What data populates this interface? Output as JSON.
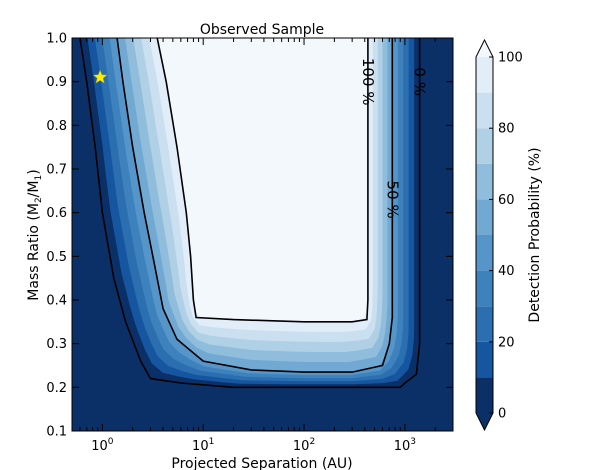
{
  "chart_data": {
    "type": "heatmap",
    "title": "Observed Sample",
    "xlabel": "Projected Separation (AU)",
    "ylabel_main": "Mass Ratio (M",
    "ylabel_sub1": "2",
    "ylabel_mid": "/M",
    "ylabel_sub2": "1",
    "ylabel_end": ")",
    "x_scale": "log",
    "xlim": [
      0.5,
      3000
    ],
    "ylim": [
      0.1,
      1.0
    ],
    "x_ticks": [
      {
        "value": 1,
        "base": "10",
        "exp": "0"
      },
      {
        "value": 10,
        "base": "10",
        "exp": "1"
      },
      {
        "value": 100,
        "base": "10",
        "exp": "2"
      },
      {
        "value": 1000,
        "base": "10",
        "exp": "3"
      }
    ],
    "y_ticks": [
      {
        "value": 0.1,
        "label": "0.1"
      },
      {
        "value": 0.2,
        "label": "0.2"
      },
      {
        "value": 0.3,
        "label": "0.3"
      },
      {
        "value": 0.4,
        "label": "0.4"
      },
      {
        "value": 0.5,
        "label": "0.5"
      },
      {
        "value": 0.6,
        "label": "0.6"
      },
      {
        "value": 0.7,
        "label": "0.7"
      },
      {
        "value": 0.8,
        "label": "0.8"
      },
      {
        "value": 0.9,
        "label": "0.9"
      },
      {
        "value": 1.0,
        "label": "1.0"
      }
    ],
    "colorbar": {
      "label": "Detection Probability (%)",
      "range": [
        0,
        100
      ],
      "ticks": [
        {
          "value": 0,
          "label": "0"
        },
        {
          "value": 20,
          "label": "20"
        },
        {
          "value": 40,
          "label": "40"
        },
        {
          "value": 60,
          "label": "60"
        },
        {
          "value": 80,
          "label": "80"
        },
        {
          "value": 100,
          "label": "100"
        }
      ],
      "levels": [
        {
          "value": 0,
          "color": "#0b3068"
        },
        {
          "value": 10,
          "color": "#1656a1"
        },
        {
          "value": 20,
          "color": "#2b6fb1"
        },
        {
          "value": 30,
          "color": "#3d82bd"
        },
        {
          "value": 40,
          "color": "#5695c9"
        },
        {
          "value": 50,
          "color": "#72a9d3"
        },
        {
          "value": 60,
          "color": "#90bddc"
        },
        {
          "value": 70,
          "color": "#b0d0e6"
        },
        {
          "value": 80,
          "color": "#cadff0"
        },
        {
          "value": 90,
          "color": "#e1edf8"
        },
        {
          "value": 100,
          "color": "#f3f8fd"
        }
      ]
    },
    "contours": [
      {
        "level": 0,
        "label": "0 %",
        "points": [
          [
            0.6,
            1.0
          ],
          [
            0.7,
            0.9
          ],
          [
            0.85,
            0.75
          ],
          [
            1.0,
            0.6
          ],
          [
            1.3,
            0.45
          ],
          [
            1.7,
            0.35
          ],
          [
            2.4,
            0.26
          ],
          [
            3.0,
            0.22
          ],
          [
            6.0,
            0.21
          ],
          [
            20,
            0.2
          ],
          [
            100,
            0.2
          ],
          [
            500,
            0.2
          ],
          [
            900,
            0.2
          ],
          [
            1000,
            0.21
          ],
          [
            1300,
            0.23
          ],
          [
            1400,
            0.3
          ],
          [
            1400,
            1.0
          ]
        ]
      },
      {
        "level": 50,
        "label": "50 %",
        "points": [
          [
            1.4,
            1.0
          ],
          [
            1.6,
            0.9
          ],
          [
            2.0,
            0.75
          ],
          [
            2.6,
            0.6
          ],
          [
            3.3,
            0.48
          ],
          [
            4.0,
            0.38
          ],
          [
            5.5,
            0.31
          ],
          [
            10,
            0.26
          ],
          [
            30,
            0.24
          ],
          [
            100,
            0.235
          ],
          [
            300,
            0.235
          ],
          [
            600,
            0.25
          ],
          [
            700,
            0.3
          ],
          [
            750,
            0.36
          ],
          [
            750,
            1.0
          ]
        ]
      },
      {
        "level": 100,
        "label": "100 %",
        "points": [
          [
            3.5,
            1.0
          ],
          [
            4.3,
            0.9
          ],
          [
            5.5,
            0.75
          ],
          [
            6.8,
            0.6
          ],
          [
            7.5,
            0.5
          ],
          [
            8.0,
            0.4
          ],
          [
            8.5,
            0.36
          ],
          [
            20,
            0.355
          ],
          [
            100,
            0.35
          ],
          [
            300,
            0.35
          ],
          [
            420,
            0.355
          ],
          [
            430,
            0.4
          ],
          [
            430,
            1.0
          ]
        ]
      }
    ],
    "markers": [
      {
        "symbol": "star",
        "x": 0.95,
        "y": 0.91,
        "color": "#ffee00"
      }
    ],
    "grid": false,
    "legend": "none"
  }
}
